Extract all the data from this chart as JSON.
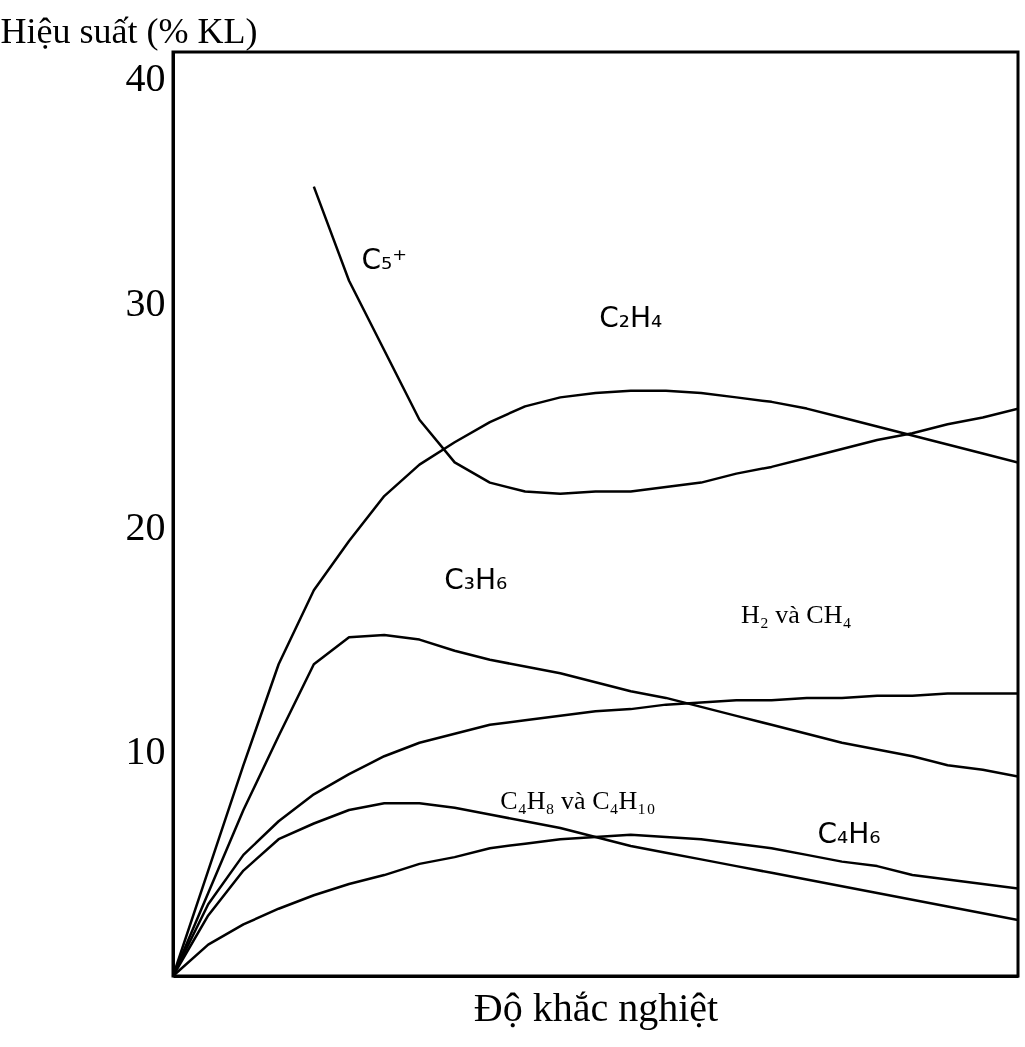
{
  "chart_data": {
    "type": "line",
    "xlabel": "Độ khắc nghiệt",
    "ylabel": "Hiệu suất (% KL)",
    "categories": [
      null,
      null,
      null,
      null,
      null,
      null,
      null,
      null,
      null,
      null,
      null,
      null,
      null,
      null,
      null,
      null,
      null,
      null,
      null,
      null,
      null,
      null,
      null,
      null,
      null
    ],
    "ylim": [
      0,
      41.2
    ],
    "yticks": [
      10,
      20,
      30,
      40
    ],
    "grid": false,
    "marker": "none",
    "line_style": "solid",
    "series": [
      {
        "name": "C₅⁺",
        "color": "#000000",
        "values": [
          null,
          null,
          null,
          null,
          35.2,
          31.0,
          27.9,
          24.8,
          22.9,
          22.0,
          21.6,
          21.5,
          21.6,
          21.6,
          21.8,
          22.0,
          22.4,
          22.7,
          23.1,
          23.5,
          23.9,
          24.2,
          24.6,
          24.9,
          25.3
        ]
      },
      {
        "name": "C₂H₄",
        "color": "#000000",
        "values": [
          0,
          4.7,
          9.4,
          13.9,
          17.2,
          19.4,
          21.4,
          22.8,
          23.8,
          24.7,
          25.4,
          25.8,
          26.0,
          26.1,
          26.1,
          26.0,
          25.8,
          25.6,
          25.3,
          24.9,
          24.5,
          24.1,
          23.7,
          23.3,
          22.9
        ]
      },
      {
        "name": "C₃H₆",
        "color": "#000000",
        "values": [
          0,
          3.7,
          7.4,
          10.7,
          13.9,
          15.1,
          15.2,
          15.0,
          14.5,
          14.1,
          13.8,
          13.5,
          13.1,
          12.7,
          12.4,
          12.0,
          11.6,
          11.2,
          10.8,
          10.4,
          10.1,
          9.8,
          9.4,
          9.2,
          8.9
        ]
      },
      {
        "name": "H₂ và CH₄",
        "color": "#000000",
        "values": [
          0,
          3.2,
          5.4,
          6.9,
          8.1,
          9.0,
          9.8,
          10.4,
          10.8,
          11.2,
          11.4,
          11.6,
          11.8,
          11.9,
          12.1,
          12.2,
          12.3,
          12.3,
          12.4,
          12.4,
          12.5,
          12.5,
          12.6,
          12.6,
          12.6
        ]
      },
      {
        "name": "C₄H₈ và C₄H₁₀",
        "color": "#000000",
        "values": [
          0,
          2.7,
          4.7,
          6.1,
          6.8,
          7.4,
          7.7,
          7.7,
          7.5,
          7.2,
          6.9,
          6.6,
          6.2,
          5.8,
          5.5,
          5.2,
          4.9,
          4.6,
          4.3,
          4.0,
          3.7,
          3.4,
          3.1,
          2.8,
          2.5
        ]
      },
      {
        "name": "C₄H₆",
        "color": "#000000",
        "values": [
          0,
          1.4,
          2.3,
          3.0,
          3.6,
          4.1,
          4.5,
          5.0,
          5.3,
          5.7,
          5.9,
          6.1,
          6.2,
          6.3,
          6.2,
          6.1,
          5.9,
          5.7,
          5.4,
          5.1,
          4.9,
          4.5,
          4.3,
          4.1,
          3.9
        ]
      }
    ]
  }
}
